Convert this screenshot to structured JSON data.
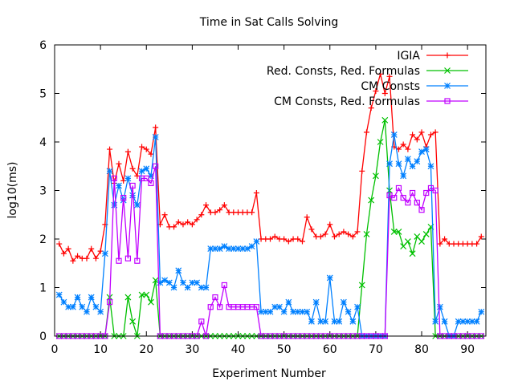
{
  "chart_data": {
    "type": "line",
    "title": "Time in Sat Calls Solving",
    "xlabel": "Experiment Number",
    "ylabel": "log10(ms)",
    "xlim": [
      0,
      94
    ],
    "ylim": [
      0,
      6
    ],
    "xticks": [
      0,
      10,
      20,
      30,
      40,
      50,
      60,
      70,
      80,
      90
    ],
    "yticks": [
      0,
      1,
      2,
      3,
      4,
      5,
      6
    ],
    "grid": false,
    "legend_position": "top-right",
    "series": [
      {
        "name": "IGIA",
        "color": "#ff0000",
        "marker": "plus",
        "x": [
          1,
          2,
          3,
          4,
          5,
          6,
          7,
          8,
          9,
          10,
          11,
          12,
          13,
          14,
          15,
          16,
          17,
          18,
          19,
          20,
          21,
          22,
          23,
          24,
          25,
          26,
          27,
          28,
          29,
          30,
          31,
          32,
          33,
          34,
          35,
          36,
          37,
          38,
          39,
          40,
          41,
          42,
          43,
          44,
          45,
          46,
          47,
          48,
          49,
          50,
          51,
          52,
          53,
          54,
          55,
          56,
          57,
          58,
          59,
          60,
          61,
          62,
          63,
          64,
          65,
          66,
          67,
          68,
          69,
          70,
          71,
          72,
          73,
          74,
          75,
          76,
          77,
          78,
          79,
          80,
          81,
          82,
          83,
          84,
          85,
          86,
          87,
          88,
          89,
          90,
          91,
          92,
          93
        ],
        "values": [
          1.9,
          1.7,
          1.8,
          1.55,
          1.65,
          1.6,
          1.6,
          1.8,
          1.6,
          1.75,
          2.3,
          3.85,
          3.15,
          3.55,
          3.2,
          3.8,
          3.45,
          3.3,
          3.9,
          3.85,
          3.75,
          4.3,
          2.3,
          2.5,
          2.25,
          2.25,
          2.35,
          2.3,
          2.35,
          2.3,
          2.4,
          2.5,
          2.7,
          2.55,
          2.55,
          2.6,
          2.7,
          2.55,
          2.55,
          2.55,
          2.55,
          2.55,
          2.55,
          2.95,
          2.0,
          2.0,
          2.0,
          2.05,
          2.0,
          2.0,
          1.95,
          2.0,
          2.0,
          1.95,
          2.45,
          2.2,
          2.05,
          2.05,
          2.1,
          2.3,
          2.05,
          2.1,
          2.15,
          2.1,
          2.05,
          2.15,
          3.4,
          4.2,
          4.7,
          5.05,
          5.4,
          5.0,
          5.35,
          3.9,
          3.85,
          3.95,
          3.85,
          4.15,
          4.05,
          4.2,
          3.9,
          4.15,
          4.2,
          1.9,
          2.0,
          1.9,
          1.9,
          1.9,
          1.9,
          1.9,
          1.9,
          1.9,
          2.05
        ]
      },
      {
        "name": "Red. Consts, Red. Formulas",
        "color": "#00c000",
        "marker": "cross",
        "x": [
          1,
          2,
          3,
          4,
          5,
          6,
          7,
          8,
          9,
          10,
          11,
          12,
          13,
          14,
          15,
          16,
          17,
          18,
          19,
          20,
          21,
          22,
          23,
          24,
          25,
          26,
          27,
          28,
          29,
          30,
          31,
          32,
          33,
          34,
          35,
          36,
          37,
          38,
          39,
          40,
          41,
          42,
          43,
          44,
          45,
          46,
          47,
          48,
          49,
          50,
          51,
          52,
          53,
          54,
          55,
          56,
          57,
          58,
          59,
          60,
          61,
          62,
          63,
          64,
          65,
          66,
          67,
          68,
          69,
          70,
          71,
          72,
          73,
          74,
          75,
          76,
          77,
          78,
          79,
          80,
          81,
          82,
          83,
          84,
          85,
          86,
          87,
          88,
          89,
          90,
          91,
          92,
          93
        ],
        "values": [
          0,
          0,
          0,
          0,
          0,
          0,
          0,
          0,
          0,
          0,
          0,
          0.8,
          0,
          0,
          0,
          0.8,
          0.3,
          0,
          0.85,
          0.85,
          0.7,
          1.15,
          0,
          0,
          0,
          0,
          0,
          0,
          0,
          0,
          0,
          0,
          0,
          0,
          0,
          0,
          0,
          0,
          0,
          0,
          0,
          0,
          0,
          0,
          0,
          0,
          0,
          0,
          0,
          0,
          0,
          0,
          0,
          0,
          0,
          0,
          0,
          0,
          0,
          0,
          0,
          0,
          0,
          0,
          0,
          0,
          1.05,
          2.1,
          2.8,
          3.3,
          4.0,
          4.45,
          3.0,
          2.15,
          2.15,
          1.85,
          1.95,
          1.7,
          2.05,
          1.95,
          2.1,
          2.25,
          0,
          0,
          0,
          0,
          0,
          0,
          0,
          0,
          0,
          0,
          0
        ]
      },
      {
        "name": "CM Consts",
        "color": "#0080ff",
        "marker": "star",
        "x": [
          1,
          2,
          3,
          4,
          5,
          6,
          7,
          8,
          9,
          10,
          11,
          12,
          13,
          14,
          15,
          16,
          17,
          18,
          19,
          20,
          21,
          22,
          23,
          24,
          25,
          26,
          27,
          28,
          29,
          30,
          31,
          32,
          33,
          34,
          35,
          36,
          37,
          38,
          39,
          40,
          41,
          42,
          43,
          44,
          45,
          46,
          47,
          48,
          49,
          50,
          51,
          52,
          53,
          54,
          55,
          56,
          57,
          58,
          59,
          60,
          61,
          62,
          63,
          64,
          65,
          66,
          67,
          68,
          69,
          70,
          71,
          72,
          73,
          74,
          75,
          76,
          77,
          78,
          79,
          80,
          81,
          82,
          83,
          84,
          85,
          86,
          87,
          88,
          89,
          90,
          91,
          92,
          93
        ],
        "values": [
          0.85,
          0.7,
          0.6,
          0.6,
          0.8,
          0.6,
          0.5,
          0.8,
          0.6,
          0.5,
          1.7,
          3.4,
          2.7,
          3.1,
          2.8,
          3.25,
          2.9,
          2.7,
          3.4,
          3.45,
          3.3,
          4.1,
          1.1,
          1.15,
          1.1,
          1.0,
          1.35,
          1.1,
          1.0,
          1.1,
          1.1,
          1.0,
          1.0,
          1.8,
          1.8,
          1.8,
          1.85,
          1.8,
          1.8,
          1.8,
          1.8,
          1.8,
          1.85,
          1.95,
          0.5,
          0.5,
          0.5,
          0.6,
          0.6,
          0.5,
          0.7,
          0.5,
          0.5,
          0.5,
          0.5,
          0.3,
          0.7,
          0.3,
          0.3,
          1.2,
          0.3,
          0.3,
          0.7,
          0.5,
          0.3,
          0.6,
          0,
          0,
          0,
          0,
          0,
          0,
          3.55,
          4.15,
          3.55,
          3.3,
          3.65,
          3.5,
          3.6,
          3.8,
          3.85,
          3.5,
          0.3,
          0.6,
          0.3,
          0,
          0,
          0.3,
          0.3,
          0.3,
          0.3,
          0.3,
          0.5
        ]
      },
      {
        "name": "CM Consts, Red. Formulas",
        "color": "#c000ff",
        "marker": "square",
        "x": [
          1,
          2,
          3,
          4,
          5,
          6,
          7,
          8,
          9,
          10,
          11,
          12,
          13,
          14,
          15,
          16,
          17,
          18,
          19,
          20,
          21,
          22,
          23,
          24,
          25,
          26,
          27,
          28,
          29,
          30,
          31,
          32,
          33,
          34,
          35,
          36,
          37,
          38,
          39,
          40,
          41,
          42,
          43,
          44,
          45,
          46,
          47,
          48,
          49,
          50,
          51,
          52,
          53,
          54,
          55,
          56,
          57,
          58,
          59,
          60,
          61,
          62,
          63,
          64,
          65,
          66,
          67,
          68,
          69,
          70,
          71,
          72,
          73,
          74,
          75,
          76,
          77,
          78,
          79,
          80,
          81,
          82,
          83,
          84,
          85,
          86,
          87,
          88,
          89,
          90,
          91,
          92,
          93
        ],
        "values": [
          0,
          0,
          0,
          0,
          0,
          0,
          0,
          0,
          0,
          0,
          0,
          0.7,
          3.25,
          1.55,
          2.85,
          1.6,
          3.1,
          1.55,
          3.25,
          3.25,
          3.15,
          3.5,
          0,
          0,
          0,
          0,
          0,
          0,
          0,
          0,
          0,
          0.3,
          0,
          0.6,
          0.8,
          0.6,
          1.05,
          0.6,
          0.6,
          0.6,
          0.6,
          0.6,
          0.6,
          0.6,
          0,
          0,
          0,
          0,
          0,
          0,
          0,
          0,
          0,
          0,
          0,
          0,
          0,
          0,
          0,
          0,
          0,
          0,
          0,
          0,
          0,
          0,
          0,
          0,
          0,
          0,
          0,
          0,
          2.9,
          2.85,
          3.05,
          2.85,
          2.75,
          2.95,
          2.75,
          2.6,
          2.95,
          3.05,
          3.0,
          0,
          0,
          0,
          0,
          0,
          0,
          0,
          0,
          0,
          0
        ]
      }
    ]
  }
}
